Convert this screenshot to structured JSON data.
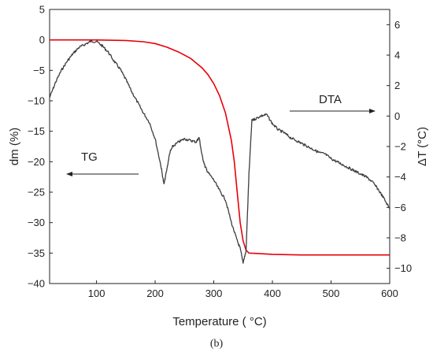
{
  "chart_data": {
    "type": "line",
    "caption": "(b)",
    "xlabel": "Temperature ( °C)",
    "ylabel_left": "dm (%)",
    "ylabel_right": "ΔT (°C)",
    "xlim": [
      20,
      600
    ],
    "ylim_left": [
      -40,
      5
    ],
    "ylim_right": [
      -11,
      7
    ],
    "x_ticks": [
      100,
      200,
      300,
      400,
      500,
      600
    ],
    "y_ticks_left": [
      5,
      0,
      -5,
      -10,
      -15,
      -20,
      -25,
      -30,
      -35,
      -40
    ],
    "y_ticks_right": [
      6,
      4,
      2,
      0,
      -2,
      -4,
      -6,
      -8,
      -10
    ],
    "grid": false,
    "annotations": [
      {
        "text": "TG",
        "arrow": "left"
      },
      {
        "text": "DTA",
        "arrow": "right"
      }
    ],
    "series": [
      {
        "name": "TG",
        "axis": "left",
        "color": "#e8000b",
        "x": [
          20,
          50,
          100,
          150,
          180,
          200,
          220,
          240,
          260,
          280,
          290,
          300,
          310,
          320,
          330,
          335,
          340,
          345,
          350,
          355,
          360,
          380,
          400,
          450,
          500,
          550,
          600
        ],
        "y": [
          0,
          0,
          0,
          -0.1,
          -0.3,
          -0.6,
          -1.2,
          -2.0,
          -3.0,
          -4.6,
          -5.7,
          -7.2,
          -9.2,
          -12.0,
          -16.5,
          -20.0,
          -25.0,
          -30.0,
          -33.0,
          -34.5,
          -35.0,
          -35.1,
          -35.2,
          -35.3,
          -35.3,
          -35.3,
          -35.3
        ]
      },
      {
        "name": "DTA",
        "axis": "right",
        "color": "#3d3d3d",
        "x": [
          20,
          30,
          40,
          50,
          60,
          70,
          80,
          90,
          100,
          110,
          120,
          130,
          140,
          150,
          160,
          170,
          180,
          190,
          200,
          210,
          215,
          220,
          225,
          230,
          240,
          250,
          260,
          270,
          275,
          280,
          285,
          290,
          300,
          310,
          320,
          330,
          340,
          345,
          350,
          355,
          360,
          365,
          370,
          380,
          390,
          400,
          410,
          420,
          430,
          440,
          450,
          460,
          470,
          480,
          490,
          500,
          510,
          520,
          530,
          540,
          550,
          560,
          570,
          580,
          590,
          600
        ],
        "y": [
          1.2,
          2.2,
          3.0,
          3.6,
          4.1,
          4.5,
          4.7,
          4.9,
          4.9,
          4.6,
          4.2,
          3.6,
          3.1,
          2.4,
          1.6,
          0.9,
          0.2,
          -0.4,
          -1.5,
          -3.3,
          -4.5,
          -3.5,
          -2.4,
          -2.0,
          -1.7,
          -1.5,
          -1.6,
          -1.7,
          -1.4,
          -2.6,
          -3.3,
          -3.7,
          -4.2,
          -4.9,
          -5.5,
          -7.0,
          -8.2,
          -8.7,
          -9.6,
          -8.9,
          -3.8,
          -0.3,
          -0.2,
          0.0,
          0.1,
          -0.5,
          -0.9,
          -1.1,
          -1.4,
          -1.6,
          -1.8,
          -2.0,
          -2.2,
          -2.4,
          -2.5,
          -2.8,
          -3.0,
          -3.2,
          -3.4,
          -3.6,
          -3.8,
          -4.0,
          -4.3,
          -4.8,
          -5.4,
          -6.1
        ]
      }
    ]
  }
}
